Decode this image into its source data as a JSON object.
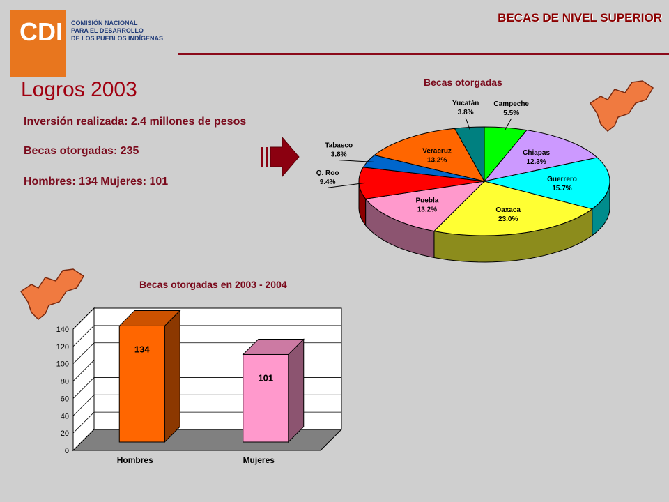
{
  "header": {
    "logo_text": "CDI",
    "org_line1": "COMISIÓN NACIONAL",
    "org_line2": "PARA EL DESARROLLO",
    "org_line3": "DE LOS PUEBLOS INDÍGENAS",
    "slide_title": "BECAS DE NIVEL SUPERIOR"
  },
  "main": {
    "heading": "Logros 2003",
    "investment": "Inversión realizada:  2.4 millones de pesos",
    "becas": "Becas otorgadas:  235",
    "gender": "Hombres: 134   Mujeres: 101"
  },
  "colors": {
    "accent": "#7a0a1c",
    "logo_orange": "#e8761e",
    "map_orange": "#f07a40"
  },
  "chart_data": [
    {
      "type": "pie",
      "title": "Becas otorgadas",
      "slices": [
        {
          "label": "Campeche",
          "value_label": "5.5%",
          "value": 5.5,
          "color": "#00ff00"
        },
        {
          "label": "Chiapas",
          "value_label": "12.3%",
          "value": 12.3,
          "color": "#cc99ff"
        },
        {
          "label": "Guerrero",
          "value_label": "15.7%",
          "value": 15.7,
          "color": "#00ffff"
        },
        {
          "label": "Oaxaca",
          "value_label": "23.0%",
          "value": 23.0,
          "color": "#ffff33"
        },
        {
          "label": "Puebla",
          "value_label": "13.2%",
          "value": 13.2,
          "color": "#ff99cc"
        },
        {
          "label": "Q. Roo",
          "value_label": "9.4%",
          "value": 9.4,
          "color": "#ff0000"
        },
        {
          "label": "Tabasco",
          "value_label": "3.8%",
          "value": 3.8,
          "color": "#0066cc"
        },
        {
          "label": "Veracruz",
          "value_label": "13.2%",
          "value": 13.2,
          "color": "#ff6600"
        },
        {
          "label": "Yucatán",
          "value_label": "3.8%",
          "value": 3.8,
          "color": "#008080"
        }
      ]
    },
    {
      "type": "bar",
      "title": "Becas otorgadas en 2003 - 2004",
      "categories": [
        "Hombres",
        "Mujeres"
      ],
      "values": [
        134,
        101
      ],
      "data_labels": [
        "134",
        "101"
      ],
      "colors": [
        "#ff6600",
        "#ff99cc"
      ],
      "ylim": [
        0,
        140
      ],
      "yticks": [
        "0",
        "20",
        "40",
        "60",
        "80",
        "100",
        "120",
        "140"
      ],
      "grid": true
    }
  ]
}
